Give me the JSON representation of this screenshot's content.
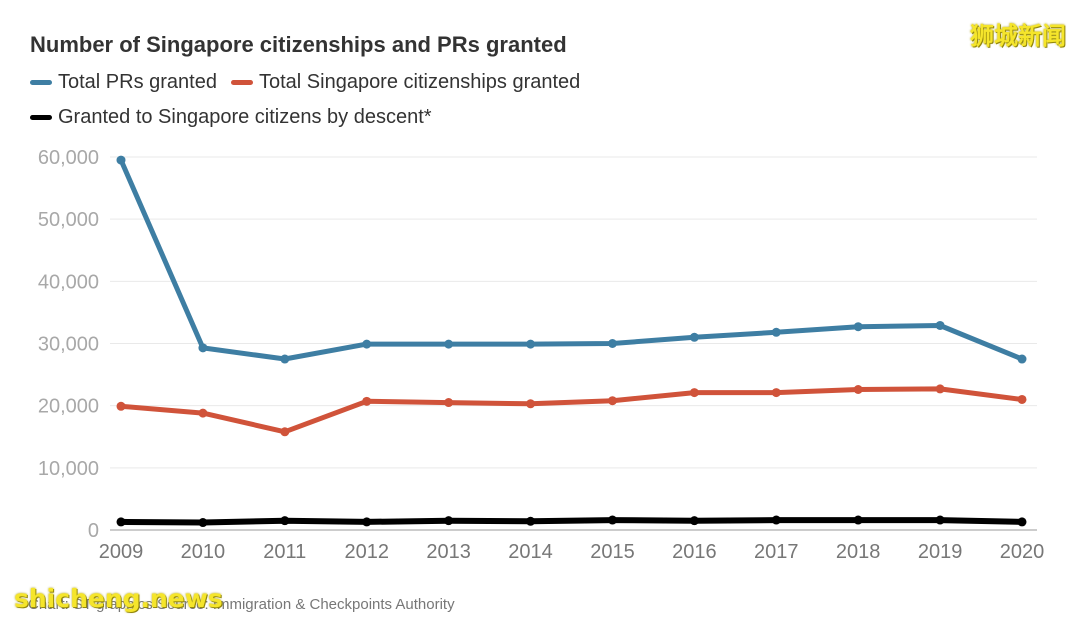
{
  "header": {
    "title": "Number of Singapore citizenships and PRs granted",
    "watermark_cn": "狮城新闻",
    "watermark_en": "shicheng.news"
  },
  "legend": [
    {
      "label": "Total PRs granted",
      "color": "#3e7ea3"
    },
    {
      "label": "Total Singapore citizenships granted",
      "color": "#d0533a"
    },
    {
      "label": "Granted to Singapore citizens by descent*",
      "color": "#000000"
    }
  ],
  "footer": {
    "source": "Chart: ST graphics   Source: Immigration & Checkpoints Authority"
  },
  "chart_data": {
    "type": "line",
    "title": "Number of Singapore citizenships and PRs granted",
    "xlabel": "",
    "ylabel": "",
    "x": [
      "2009",
      "2010",
      "2011",
      "2012",
      "2013",
      "2014",
      "2015",
      "2016",
      "2017",
      "2018",
      "2019",
      "2020"
    ],
    "ylim": [
      0,
      60000
    ],
    "y_ticks": [
      "0",
      "10,000",
      "20,000",
      "30,000",
      "40,000",
      "50,000",
      "60,000"
    ],
    "grid": true,
    "legend_position": "top-left",
    "series": [
      {
        "name": "Total PRs granted",
        "color": "#3e7ea3",
        "values": [
          59500,
          29300,
          27500,
          29900,
          29900,
          29900,
          30000,
          31000,
          31800,
          32700,
          32900,
          27500
        ]
      },
      {
        "name": "Total Singapore citizenships granted",
        "color": "#d0533a",
        "values": [
          19900,
          18800,
          15800,
          20700,
          20500,
          20300,
          20800,
          22100,
          22100,
          22600,
          22700,
          21000
        ]
      },
      {
        "name": "Granted to Singapore citizens by descent*",
        "color": "#000000",
        "values": [
          1300,
          1200,
          1500,
          1300,
          1500,
          1400,
          1600,
          1500,
          1600,
          1600,
          1600,
          1300
        ]
      }
    ]
  }
}
